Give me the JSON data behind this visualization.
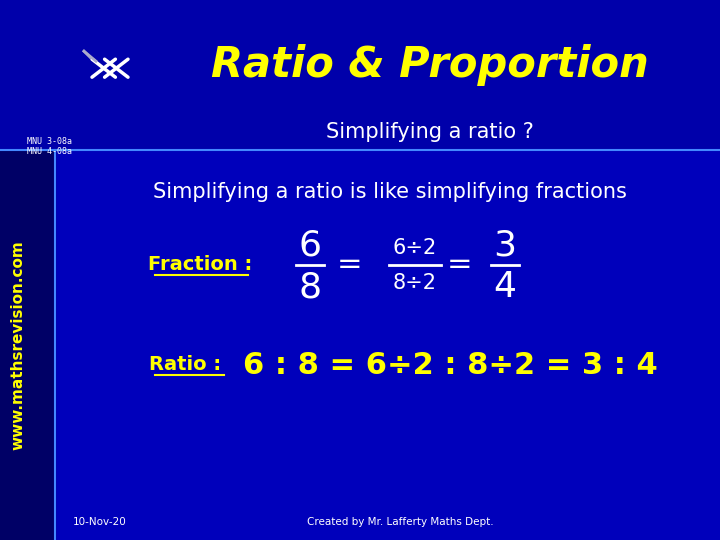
{
  "bg_color": "#0000BB",
  "header_bg": "#0000AA",
  "sidebar_bg": "#000066",
  "title_text": "Ratio & Proportion",
  "title_color": "#FFFF00",
  "subtitle_text": "Simplifying a ratio ?",
  "subtitle_color": "#FFFFFF",
  "mnu_text1": "MNU 3-08a",
  "mnu_text2": "MNU 4-08a",
  "mnu_color": "#FFFFFF",
  "watermark_text": "www.mathsrevision.com",
  "watermark_color": "#FFFF00",
  "line1_text": "Simplifying a ratio is like simplifying fractions",
  "line1_color": "#FFFFFF",
  "fraction_label": "Fraction :",
  "fraction_label_color": "#FFFF00",
  "ratio_label": "Ratio :",
  "ratio_label_color": "#FFFF00",
  "ratio_content_color": "#FFFF00",
  "footer_date": "10-Nov-20",
  "footer_credit": "Created by Mr. Lafferty Maths Dept.",
  "footer_color": "#FFFFFF",
  "white": "#FFFFFF",
  "cyan_line": "#4488FF"
}
